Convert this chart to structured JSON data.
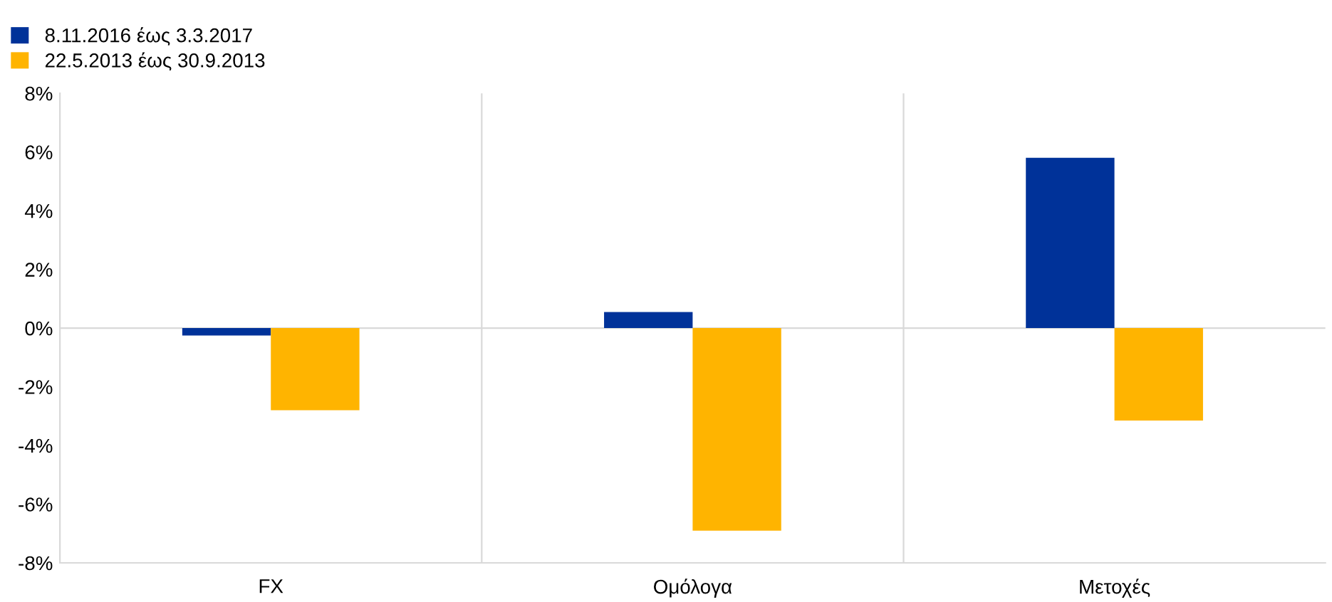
{
  "chart_data": {
    "type": "bar",
    "categories": [
      "FX",
      "Ομόλογα",
      "Μετοχές"
    ],
    "series": [
      {
        "name": "8.11.2016 έως 3.3.2017",
        "color": "#003299",
        "values": [
          -0.25,
          0.55,
          5.8
        ]
      },
      {
        "name": "22.5.2013 έως 30.9.2013",
        "color": "#ffb400",
        "values": [
          -2.8,
          -6.9,
          -3.15
        ]
      }
    ],
    "ylim": [
      -8,
      8
    ],
    "yticks": [
      {
        "value": -8,
        "label": "-8%"
      },
      {
        "value": -6,
        "label": "-6%"
      },
      {
        "value": -4,
        "label": "-4%"
      },
      {
        "value": -2,
        "label": "-2%"
      },
      {
        "value": 0,
        "label": "0%"
      },
      {
        "value": 2,
        "label": "2%"
      },
      {
        "value": 4,
        "label": "4%"
      },
      {
        "value": 6,
        "label": "6%"
      },
      {
        "value": 8,
        "label": "8%"
      }
    ],
    "grid": "x",
    "ref_lines": [
      {
        "axis": "y",
        "value": 0,
        "color": "#d9d9d9"
      }
    ],
    "legend": "top left"
  }
}
